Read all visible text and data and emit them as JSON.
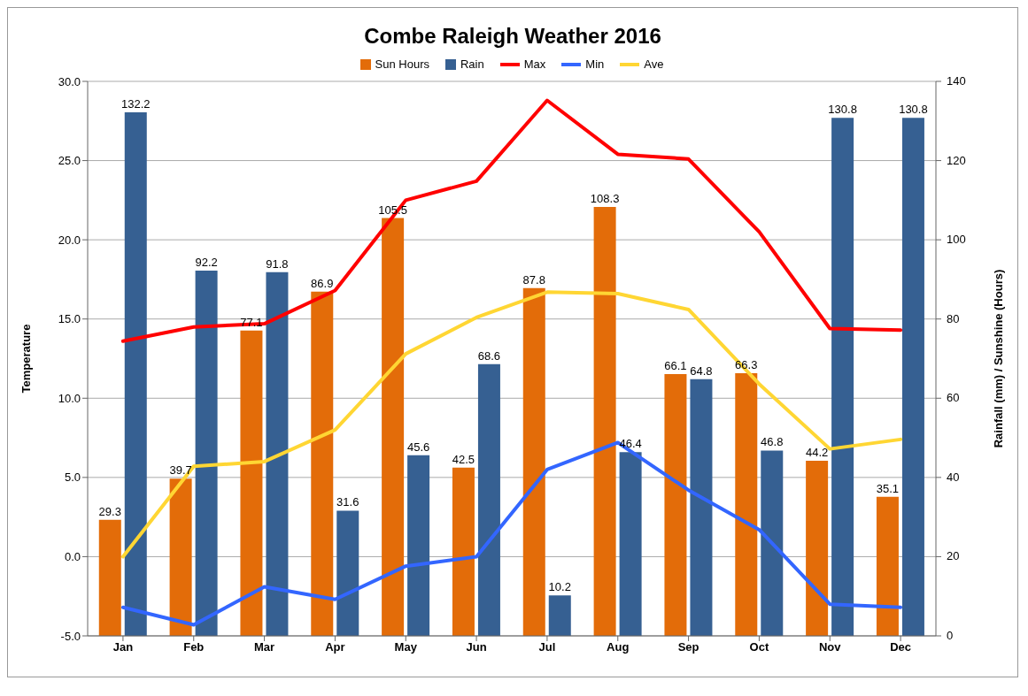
{
  "chart_data": {
    "type": "bar",
    "title": "Combe Raleigh Weather 2016",
    "ylabel": "Temperature",
    "y2label": "Rainfall (mm) / Sunshine (Hours)",
    "categories": [
      "Jan",
      "Feb",
      "Mar",
      "Apr",
      "May",
      "Jun",
      "Jul",
      "Aug",
      "Sep",
      "Oct",
      "Nov",
      "Dec"
    ],
    "series": [
      {
        "name": "Sun Hours",
        "axis": "y2",
        "color": "#e36c09",
        "values": [
          29.3,
          39.7,
          77.1,
          86.9,
          105.5,
          42.5,
          87.8,
          108.3,
          66.1,
          66.3,
          44.2,
          35.1
        ],
        "value_labels": [
          "29.3",
          "39.7",
          "77.1",
          "86.9",
          "105.5",
          "42.5",
          "87.8",
          "108.3",
          "66.1",
          "66.3",
          "44.2",
          "35.1"
        ]
      },
      {
        "name": "Rain",
        "axis": "y2",
        "color": "#366092",
        "values": [
          132.2,
          92.2,
          91.8,
          31.6,
          45.6,
          68.6,
          10.2,
          46.4,
          64.8,
          46.8,
          130.8,
          130.8
        ],
        "value_labels": [
          "132.2",
          "92.2",
          "91.8",
          "31.6",
          "45.6",
          "68.6",
          "10.2",
          "46.4",
          "64.8",
          "46.8",
          "130.8",
          "130.8"
        ]
      },
      {
        "name": "Max",
        "type": "line",
        "color": "#ff0000",
        "values": [
          13.6,
          14.5,
          14.7,
          16.8,
          22.5,
          23.7,
          28.8,
          25.4,
          25.1,
          20.5,
          14.4,
          14.3
        ]
      },
      {
        "name": "Min",
        "type": "line",
        "color": "#3366ff",
        "values": [
          -3.2,
          -4.3,
          -1.9,
          -2.7,
          -0.6,
          0.0,
          5.5,
          7.2,
          4.2,
          1.7,
          -3.0,
          -3.2
        ]
      },
      {
        "name": "Ave",
        "type": "line",
        "color": "#ffd633",
        "values": [
          0.0,
          5.7,
          6.0,
          8.0,
          12.8,
          15.1,
          16.7,
          16.6,
          15.6,
          10.9,
          6.8,
          7.4
        ]
      }
    ],
    "ylim": [
      -5,
      30
    ],
    "yticks": [
      {
        "value": -5,
        "label": "-5.0"
      },
      {
        "value": 0,
        "label": "0.0"
      },
      {
        "value": 5,
        "label": "5.0"
      },
      {
        "value": 10,
        "label": "10.0"
      },
      {
        "value": 15,
        "label": "15.0"
      },
      {
        "value": 20,
        "label": "20.0"
      },
      {
        "value": 25,
        "label": "25.0"
      },
      {
        "value": 30,
        "label": "30.0"
      }
    ],
    "y2lim": [
      0,
      140
    ],
    "y2ticks": [
      0,
      20,
      40,
      60,
      80,
      100,
      120,
      140
    ],
    "grid": "y",
    "legend": "top",
    "marker": "none",
    "line_style": "solid"
  }
}
